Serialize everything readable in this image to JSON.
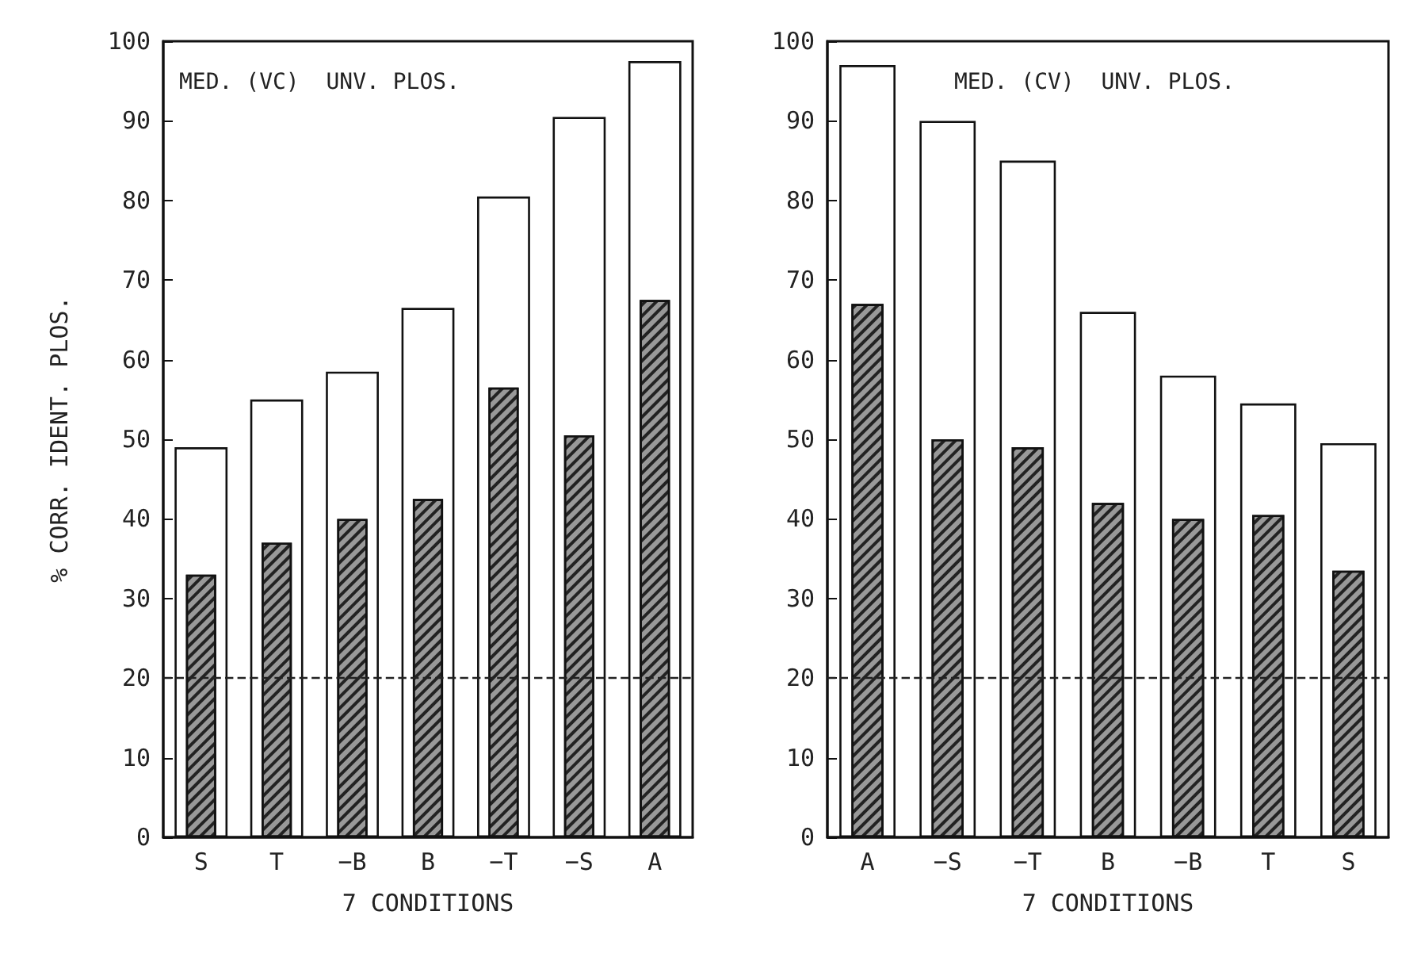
{
  "chart_data": [
    {
      "type": "bar",
      "title": "MED. (VC)  UNV. PLOS.",
      "xlabel": "7 CONDITIONS",
      "ylabel": "% CORR. IDENT. PLOS.",
      "categories": [
        "S",
        "T",
        "−B",
        "B",
        "−T",
        "−S",
        "A"
      ],
      "series": [
        {
          "color": "#ffffff",
          "values": [
            49,
            55,
            58.5,
            66.5,
            80.5,
            90.5,
            97.5
          ]
        },
        {
          "color": "#999999",
          "values": [
            33,
            37,
            40,
            42.5,
            56.5,
            50.5,
            67.5
          ]
        }
      ],
      "ylim": [
        0,
        100
      ],
      "yticks": [
        0,
        10,
        20,
        30,
        40,
        50,
        60,
        70,
        80,
        90,
        100
      ],
      "grid": false,
      "ref_lines": [
        {
          "axis": "y",
          "value": 20,
          "line_style": "dashed",
          "color": "#222222"
        }
      ]
    },
    {
      "type": "bar",
      "title": "MED. (CV)  UNV. PLOS.",
      "xlabel": "7 CONDITIONS",
      "categories": [
        "A",
        "−S",
        "−T",
        "B",
        "−B",
        "T",
        "S"
      ],
      "series": [
        {
          "color": "#ffffff",
          "values": [
            97,
            90,
            85,
            66,
            58,
            54.5,
            49.5
          ]
        },
        {
          "color": "#999999",
          "values": [
            67,
            50,
            49,
            42,
            40,
            40.5,
            33.5
          ]
        }
      ],
      "ylim": [
        0,
        100
      ],
      "yticks": [
        0,
        10,
        20,
        30,
        40,
        50,
        60,
        70,
        80,
        90,
        100
      ],
      "grid": false,
      "ref_lines": [
        {
          "axis": "y",
          "value": 20,
          "line_style": "dashed",
          "color": "#222222"
        }
      ]
    }
  ]
}
